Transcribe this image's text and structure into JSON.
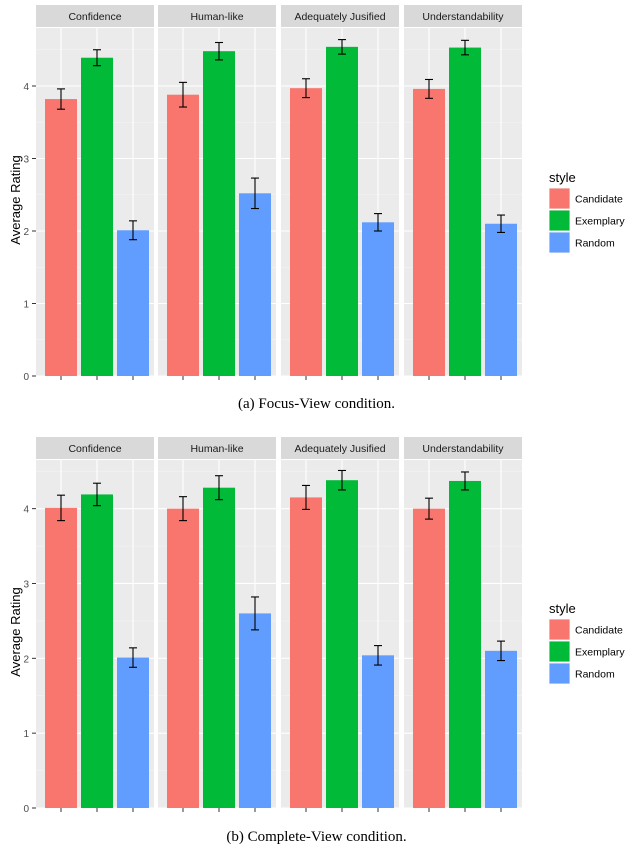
{
  "colors": {
    "panel_bg": "#EBEBEB",
    "strip_bg": "#D9D9D9",
    "grid_major": "#FFFFFF",
    "grid_minor": "#F4F4F4",
    "Candidate": "#F8766D",
    "Exemplary": "#00BA38",
    "Random": "#619CFF"
  },
  "chart_data": [
    {
      "type": "bar",
      "caption": "(a) Focus-View condition.",
      "ylabel": "Average Rating",
      "ylim": [
        0,
        4.8
      ],
      "yticks": [
        "0",
        "1",
        "2",
        "3",
        "4"
      ],
      "grid": true,
      "legend": {
        "title": "style",
        "position": "right",
        "entries": [
          "Candidate",
          "Exemplary",
          "Random"
        ]
      },
      "facets": [
        {
          "name": "Confidence",
          "series": [
            {
              "name": "Candidate",
              "value": 3.82,
              "err": 0.14
            },
            {
              "name": "Exemplary",
              "value": 4.39,
              "err": 0.11
            },
            {
              "name": "Random",
              "value": 2.01,
              "err": 0.13
            }
          ]
        },
        {
          "name": "Human-like",
          "series": [
            {
              "name": "Candidate",
              "value": 3.88,
              "err": 0.17
            },
            {
              "name": "Exemplary",
              "value": 4.48,
              "err": 0.12
            },
            {
              "name": "Random",
              "value": 2.52,
              "err": 0.21
            }
          ]
        },
        {
          "name": "Adequately Jusified",
          "series": [
            {
              "name": "Candidate",
              "value": 3.97,
              "err": 0.13
            },
            {
              "name": "Exemplary",
              "value": 4.54,
              "err": 0.1
            },
            {
              "name": "Random",
              "value": 2.12,
              "err": 0.12
            }
          ]
        },
        {
          "name": "Understandability",
          "series": [
            {
              "name": "Candidate",
              "value": 3.96,
              "err": 0.13
            },
            {
              "name": "Exemplary",
              "value": 4.53,
              "err": 0.1
            },
            {
              "name": "Random",
              "value": 2.1,
              "err": 0.12
            }
          ]
        }
      ]
    },
    {
      "type": "bar",
      "caption": "(b) Complete-View condition.",
      "ylabel": "Average Rating",
      "ylim": [
        0,
        4.65
      ],
      "yticks": [
        "0",
        "1",
        "2",
        "3",
        "4"
      ],
      "grid": true,
      "legend": {
        "title": "style",
        "position": "right",
        "entries": [
          "Candidate",
          "Exemplary",
          "Random"
        ]
      },
      "facets": [
        {
          "name": "Confidence",
          "series": [
            {
              "name": "Candidate",
              "value": 4.01,
              "err": 0.17
            },
            {
              "name": "Exemplary",
              "value": 4.19,
              "err": 0.15
            },
            {
              "name": "Random",
              "value": 2.01,
              "err": 0.13
            }
          ]
        },
        {
          "name": "Human-like",
          "series": [
            {
              "name": "Candidate",
              "value": 4.0,
              "err": 0.16
            },
            {
              "name": "Exemplary",
              "value": 4.28,
              "err": 0.16
            },
            {
              "name": "Random",
              "value": 2.6,
              "err": 0.22
            }
          ]
        },
        {
          "name": "Adequately Jusified",
          "series": [
            {
              "name": "Candidate",
              "value": 4.15,
              "err": 0.16
            },
            {
              "name": "Exemplary",
              "value": 4.38,
              "err": 0.13
            },
            {
              "name": "Random",
              "value": 2.04,
              "err": 0.13
            }
          ]
        },
        {
          "name": "Understandability",
          "series": [
            {
              "name": "Candidate",
              "value": 4.0,
              "err": 0.14
            },
            {
              "name": "Exemplary",
              "value": 4.37,
              "err": 0.12
            },
            {
              "name": "Random",
              "value": 2.1,
              "err": 0.13
            }
          ]
        }
      ]
    }
  ]
}
